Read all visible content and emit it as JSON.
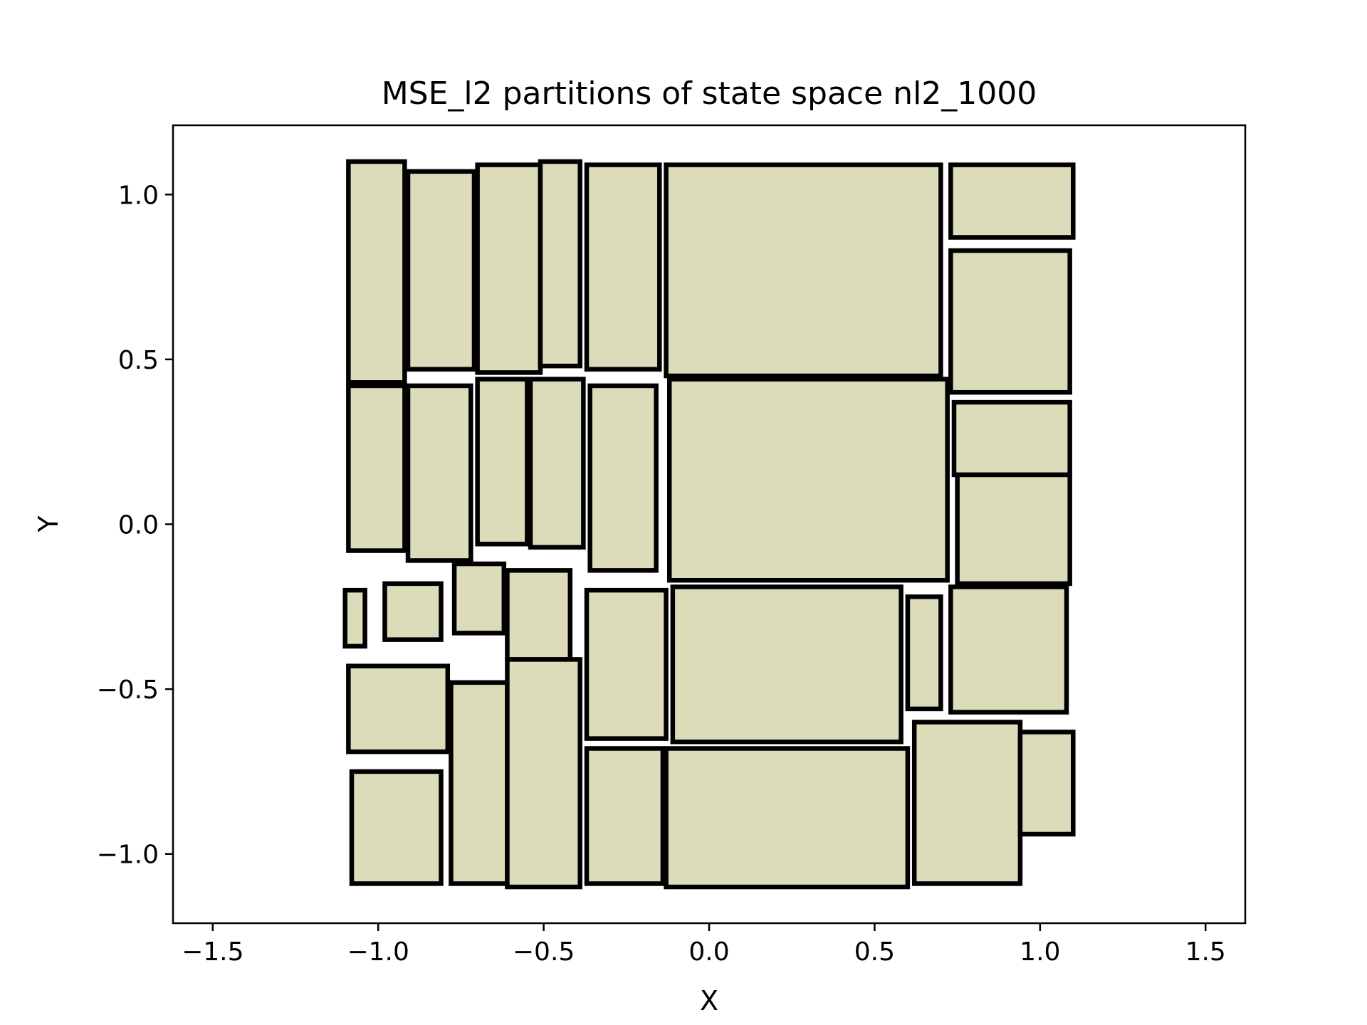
{
  "chart_data": {
    "type": "rectangles",
    "title": "MSE_l2 partitions of state space nl2_1000",
    "xlabel": "X",
    "ylabel": "Y",
    "xlim": [
      -1.62,
      1.62
    ],
    "ylim": [
      -1.21,
      1.21
    ],
    "xticks": [
      {
        "value": -1.5,
        "label": "−1.5"
      },
      {
        "value": -1.0,
        "label": "−1.0"
      },
      {
        "value": -0.5,
        "label": "−0.5"
      },
      {
        "value": 0.0,
        "label": "0.0"
      },
      {
        "value": 0.5,
        "label": "0.5"
      },
      {
        "value": 1.0,
        "label": "1.0"
      },
      {
        "value": 1.5,
        "label": "1.5"
      }
    ],
    "yticks": [
      {
        "value": -1.0,
        "label": "−1.0"
      },
      {
        "value": -0.5,
        "label": "−0.5"
      },
      {
        "value": 0.0,
        "label": "0.0"
      },
      {
        "value": 0.5,
        "label": "0.5"
      },
      {
        "value": 1.0,
        "label": "1.0"
      }
    ],
    "grid": false,
    "colors": {
      "fill": "#dcdcba",
      "edge": "#000000"
    },
    "rectangles": [
      {
        "x0": -1.09,
        "x1": -0.92,
        "y0": 0.43,
        "y1": 1.1
      },
      {
        "x0": -0.91,
        "x1": -0.71,
        "y0": 0.47,
        "y1": 1.07
      },
      {
        "x0": -0.7,
        "x1": -0.51,
        "y0": 0.46,
        "y1": 1.09
      },
      {
        "x0": -0.51,
        "x1": -0.39,
        "y0": 0.48,
        "y1": 1.1
      },
      {
        "x0": -0.37,
        "x1": -0.15,
        "y0": 0.47,
        "y1": 1.09
      },
      {
        "x0": -0.13,
        "x1": 0.7,
        "y0": 0.45,
        "y1": 1.09
      },
      {
        "x0": 0.73,
        "x1": 1.1,
        "y0": 0.87,
        "y1": 1.09
      },
      {
        "x0": -1.09,
        "x1": -0.92,
        "y0": -0.08,
        "y1": 0.42
      },
      {
        "x0": -0.91,
        "x1": -0.72,
        "y0": -0.11,
        "y1": 0.42
      },
      {
        "x0": -0.7,
        "x1": -0.55,
        "y0": -0.06,
        "y1": 0.44
      },
      {
        "x0": -0.54,
        "x1": -0.38,
        "y0": -0.07,
        "y1": 0.44
      },
      {
        "x0": -0.36,
        "x1": -0.16,
        "y0": -0.14,
        "y1": 0.42
      },
      {
        "x0": -0.12,
        "x1": 0.72,
        "y0": -0.17,
        "y1": 0.44
      },
      {
        "x0": 0.73,
        "x1": 1.09,
        "y0": 0.4,
        "y1": 0.83
      },
      {
        "x0": 0.74,
        "x1": 1.09,
        "y0": 0.15,
        "y1": 0.37
      },
      {
        "x0": 0.75,
        "x1": 1.09,
        "y0": -0.18,
        "y1": 0.15
      },
      {
        "x0": -1.1,
        "x1": -1.04,
        "y0": -0.37,
        "y1": -0.2
      },
      {
        "x0": -0.98,
        "x1": -0.81,
        "y0": -0.35,
        "y1": -0.18
      },
      {
        "x0": -0.77,
        "x1": -0.62,
        "y0": -0.33,
        "y1": -0.12
      },
      {
        "x0": -0.61,
        "x1": -0.42,
        "y0": -0.41,
        "y1": -0.14
      },
      {
        "x0": -0.37,
        "x1": -0.13,
        "y0": -0.65,
        "y1": -0.2
      },
      {
        "x0": -0.11,
        "x1": 0.58,
        "y0": -0.66,
        "y1": -0.19
      },
      {
        "x0": 0.6,
        "x1": 0.7,
        "y0": -0.56,
        "y1": -0.22
      },
      {
        "x0": 0.73,
        "x1": 1.08,
        "y0": -0.57,
        "y1": -0.19
      },
      {
        "x0": -1.09,
        "x1": -0.79,
        "y0": -0.69,
        "y1": -0.43
      },
      {
        "x0": -0.78,
        "x1": -0.61,
        "y0": -1.09,
        "y1": -0.48
      },
      {
        "x0": -0.61,
        "x1": -0.39,
        "y0": -1.1,
        "y1": -0.41
      },
      {
        "x0": -0.37,
        "x1": -0.14,
        "y0": -1.09,
        "y1": -0.68
      },
      {
        "x0": -0.13,
        "x1": 0.6,
        "y0": -1.1,
        "y1": -0.68
      },
      {
        "x0": 0.62,
        "x1": 0.94,
        "y0": -1.09,
        "y1": -0.6
      },
      {
        "x0": 0.94,
        "x1": 1.1,
        "y0": -0.94,
        "y1": -0.63
      },
      {
        "x0": -1.08,
        "x1": -0.81,
        "y0": -1.09,
        "y1": -0.75
      }
    ]
  }
}
